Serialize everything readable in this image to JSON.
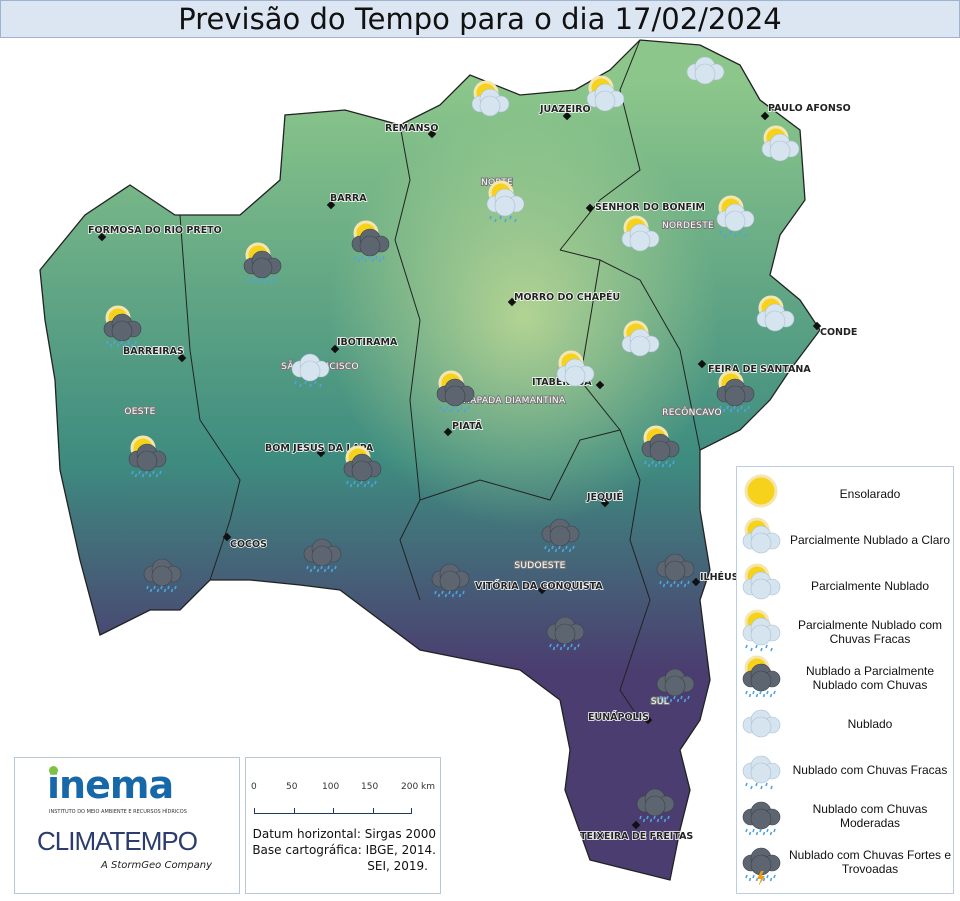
{
  "title": "Previsão do Tempo para o dia 17/02/2024",
  "map": {
    "colors": {
      "north": "#8cc68a",
      "center": "#3e8c80",
      "south": "#4b3d70"
    },
    "cities": [
      "JUAZEIRO",
      "REMANSO",
      "PAULO AFONSO",
      "BARRA",
      "FORMOSA DO RIO PRETO",
      "SENHOR DO BONFIM",
      "MORRO DO CHAPÉU",
      "CONDE",
      "BARREIRAS",
      "IBOTIRAMA",
      "FEIRA DE SANTANA",
      "ITABERABA",
      "PIATÃ",
      "BOM JESUS DA LAPA",
      "JEQUIÉ",
      "COCOS",
      "ILHÉUS",
      "VITÓRIA DA CONQUISTA",
      "EUNÁPOLIS",
      "TEIXEIRA DE FREITAS"
    ],
    "regions": [
      "NORTE",
      "NORDESTE",
      "SÃO FRANCISCO",
      "OESTE",
      "CHAPADA DIAMANTINA",
      "RECÔNCAVO",
      "SUDOESTE",
      "SUL"
    ],
    "icons": [
      "parcialmente-nublado",
      "parcialmente-nublado",
      "nublado",
      "parcialmente-nublado",
      "parcialmente-nublado-chuvas-fracas",
      "parcialmente-nublado-chuvas-fracas",
      "parcialmente-nublado",
      "nublado-a-parcialmente-nublado-chuvas",
      "nublado-a-parcialmente-nublado-chuvas",
      "nublado-a-parcialmente-nublado-chuvas",
      "parcialmente-nublado",
      "parcialmente-nublado",
      "parcialmente-nublado",
      "nublado-chuvas-fracas",
      "nublado-a-parcialmente-nublado-chuvas",
      "nublado-a-parcialmente-nublado-chuvas",
      "nublado-a-parcialmente-nublado-chuvas",
      "nublado-a-parcialmente-nublado-chuvas",
      "nublado-a-parcialmente-nublado-chuvas",
      "nublado-chuvas-moderadas",
      "nublado-chuvas-moderadas",
      "nublado-chuvas-moderadas",
      "nublado-chuvas-moderadas",
      "nublado-chuvas-moderadas",
      "nublado-chuvas-moderadas",
      "nublado-chuvas-moderadas",
      "nublado-chuvas-moderadas"
    ]
  },
  "logos": {
    "inema": "inema",
    "inema_subtitle": "INSTITUTO DO MEIO AMBIENTE E RECURSOS HÍDRICOS",
    "climatempo": "CLIMATEMPO",
    "climatempo_subtitle": "A StormGeo Company"
  },
  "scale": {
    "ticks": [
      "0",
      "50",
      "100",
      "150",
      "200 km"
    ],
    "datum": "Datum horizontal: Sirgas 2000",
    "base": "Base cartográfica: IBGE, 2014.",
    "sei": "SEI, 2019."
  },
  "legend": [
    {
      "icon": "ensolarado",
      "label": "Ensolarado"
    },
    {
      "icon": "parcialmente-nublado-a-claro",
      "label": "Parcialmente Nublado a Claro"
    },
    {
      "icon": "parcialmente-nublado",
      "label": "Parcialmente Nublado"
    },
    {
      "icon": "parcialmente-nublado-chuvas-fracas",
      "label": "Parcialmente Nublado com Chuvas Fracas"
    },
    {
      "icon": "nublado-a-parcialmente-nublado-chuvas",
      "label": "Nublado a Parcialmente Nublado com Chuvas"
    },
    {
      "icon": "nublado",
      "label": "Nublado"
    },
    {
      "icon": "nublado-chuvas-fracas",
      "label": "Nublado com Chuvas Fracas"
    },
    {
      "icon": "nublado-chuvas-moderadas",
      "label": "Nublado com Chuvas Moderadas"
    },
    {
      "icon": "nublado-chuvas-fortes-trovoadas",
      "label": "Nublado com Chuvas Fortes e Trovoadas"
    }
  ]
}
